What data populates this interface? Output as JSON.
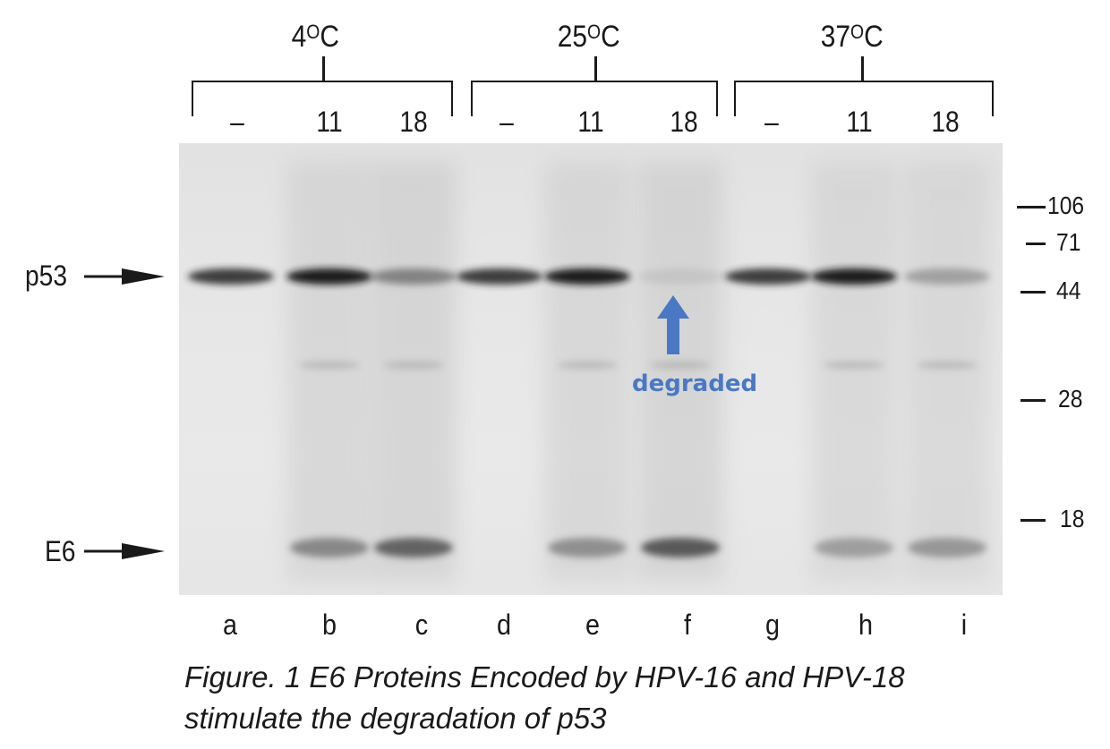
{
  "groups": [
    {
      "temperature": "4",
      "unit": "C",
      "treatments": [
        "–",
        "11",
        "18"
      ]
    },
    {
      "temperature": "25",
      "unit": "C",
      "treatments": [
        "–",
        "11",
        "18"
      ]
    },
    {
      "temperature": "37",
      "unit": "C",
      "treatments": [
        "–",
        "11",
        "18"
      ]
    }
  ],
  "temp_degree_symbol": "O",
  "lanes": [
    "a",
    "b",
    "c",
    "d",
    "e",
    "f",
    "g",
    "h",
    "i"
  ],
  "row_labels": {
    "p53": "p53",
    "e6": "E6"
  },
  "markers": [
    "106",
    "71",
    "44",
    "28",
    "18"
  ],
  "band_intensity": {
    "p53": [
      0.85,
      0.95,
      0.55,
      0.85,
      0.95,
      0.12,
      0.85,
      0.95,
      0.4
    ],
    "e6": [
      0.0,
      0.6,
      0.8,
      0.0,
      0.55,
      0.85,
      0.0,
      0.45,
      0.5
    ]
  },
  "annotation": {
    "text": "degraded",
    "color": "#4a78c4"
  },
  "caption": {
    "line1": "Figure. 1 E6 Proteins Encoded by HPV-16 and HPV-18",
    "line2": "stimulate the degradation of p53"
  }
}
